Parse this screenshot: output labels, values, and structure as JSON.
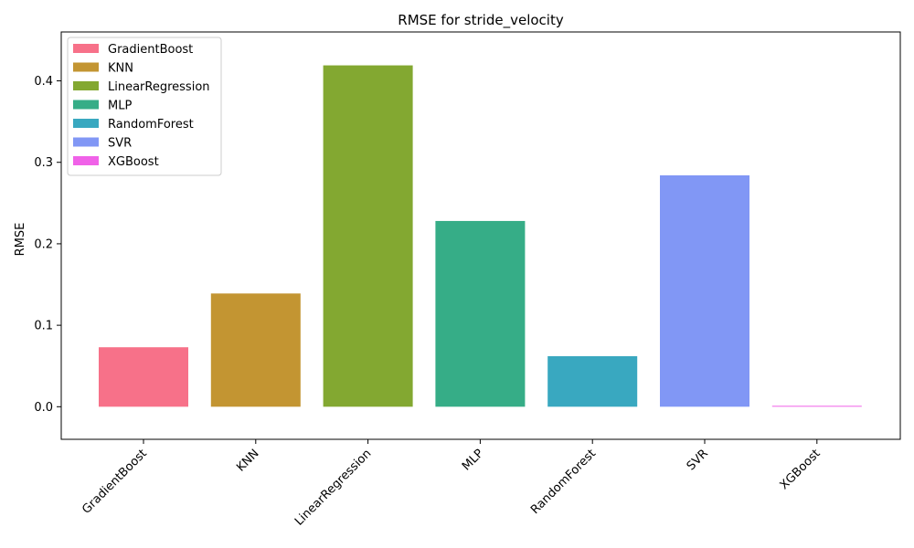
{
  "chart_data": {
    "type": "bar",
    "title": "RMSE for stride_velocity",
    "xlabel": "",
    "ylabel": "RMSE",
    "categories": [
      "GradientBoost",
      "KNN",
      "LinearRegression",
      "MLP",
      "RandomForest",
      "SVR",
      "XGBoost"
    ],
    "values": [
      0.073,
      0.139,
      0.419,
      0.228,
      0.062,
      0.284,
      0.001
    ],
    "colors": [
      "#f77189",
      "#c39532",
      "#83a831",
      "#36ad87",
      "#39a8c0",
      "#8197f5",
      "#f062e8"
    ],
    "ylim": [
      -0.04,
      0.46
    ],
    "yticks": [
      0.0,
      0.1,
      0.2,
      0.3,
      0.4
    ],
    "ytick_labels": [
      "0.0",
      "0.1",
      "0.2",
      "0.3",
      "0.4"
    ],
    "legend": {
      "placement": "top-left",
      "entries": [
        "GradientBoost",
        "KNN",
        "LinearRegression",
        "MLP",
        "RandomForest",
        "SVR",
        "XGBoost"
      ]
    },
    "grid": false
  }
}
